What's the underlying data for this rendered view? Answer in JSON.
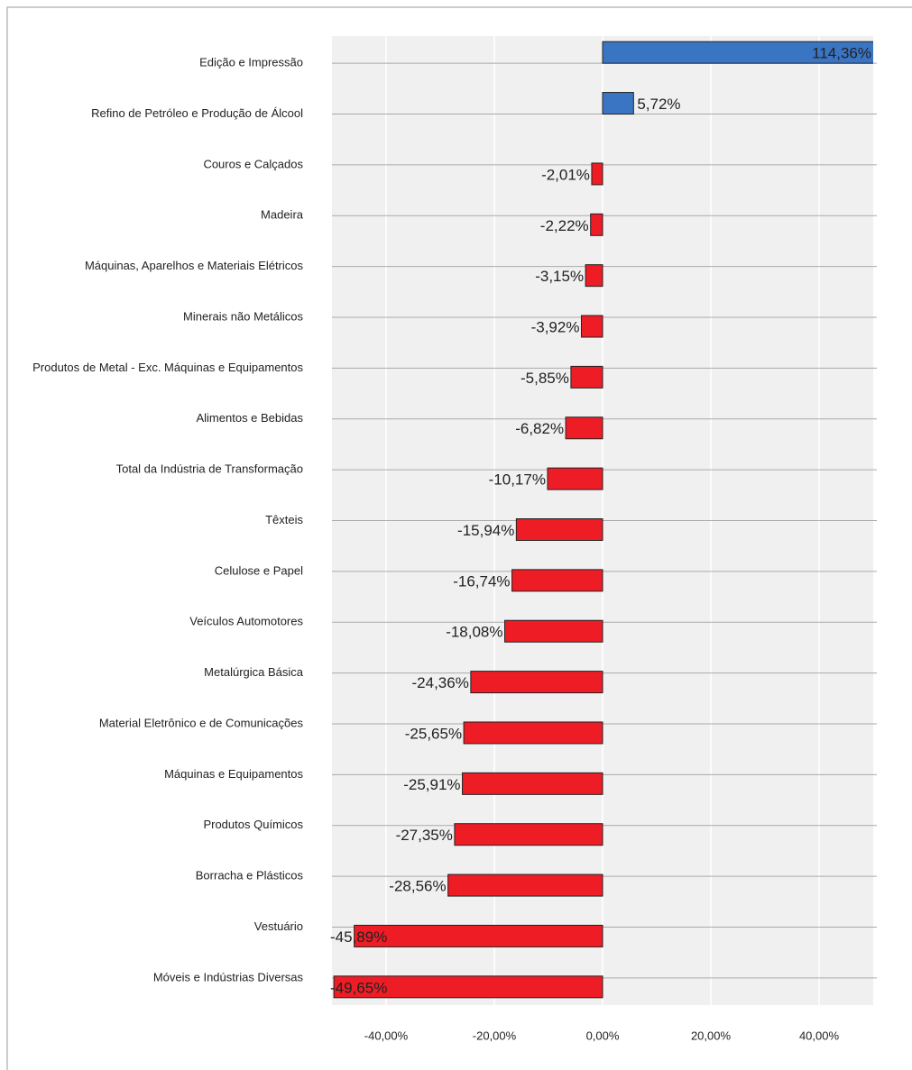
{
  "chart_data": {
    "type": "barh",
    "categories": [
      "Edição e Impressão",
      "Refino de Petróleo e Produção de Álcool",
      "Couros e Calçados",
      "Madeira",
      "Máquinas, Aparelhos e Materiais Elétricos",
      "Minerais não Metálicos",
      "Produtos de Metal - Exc. Máquinas e Equipamentos",
      "Alimentos e Bebidas",
      "Total da Indústria de Transformação",
      "Têxteis",
      "Celulose e Papel",
      "Veículos Automotores",
      "Metalúrgica Básica",
      "Material Eletrônico e de Comunicações",
      "Máquinas e Equipamentos",
      "Produtos Químicos",
      "Borracha e Plásticos",
      "Vestuário",
      "Móveis e Indústrias Diversas"
    ],
    "values": [
      114.36,
      5.72,
      -2.01,
      -2.22,
      -3.15,
      -3.92,
      -5.85,
      -6.82,
      -10.17,
      -15.94,
      -16.74,
      -18.08,
      -24.36,
      -25.65,
      -25.91,
      -27.35,
      -28.56,
      -45.89,
      -49.65
    ],
    "value_labels": [
      "114,36%",
      "5,72%",
      "-2,01%",
      "-2,22%",
      "-3,15%",
      "-3,92%",
      "-5,85%",
      "-6,82%",
      "-10,17%",
      "-15,94%",
      "-16,74%",
      "-18,08%",
      "-24,36%",
      "-25,65%",
      "-25,91%",
      "-27,35%",
      "-28,56%",
      "-45,89%",
      "-49,65%"
    ],
    "positive_color": "#3a75c4",
    "negative_color": "#ee1c25",
    "xlim": [
      -50,
      50
    ],
    "xticks": [
      {
        "value": -40,
        "label": "-40,00%"
      },
      {
        "value": -20,
        "label": "-20,00%"
      },
      {
        "value": 0,
        "label": "0,00%"
      },
      {
        "value": 20,
        "label": "20,00%"
      },
      {
        "value": 40,
        "label": "40,00%"
      }
    ],
    "grid": true
  }
}
